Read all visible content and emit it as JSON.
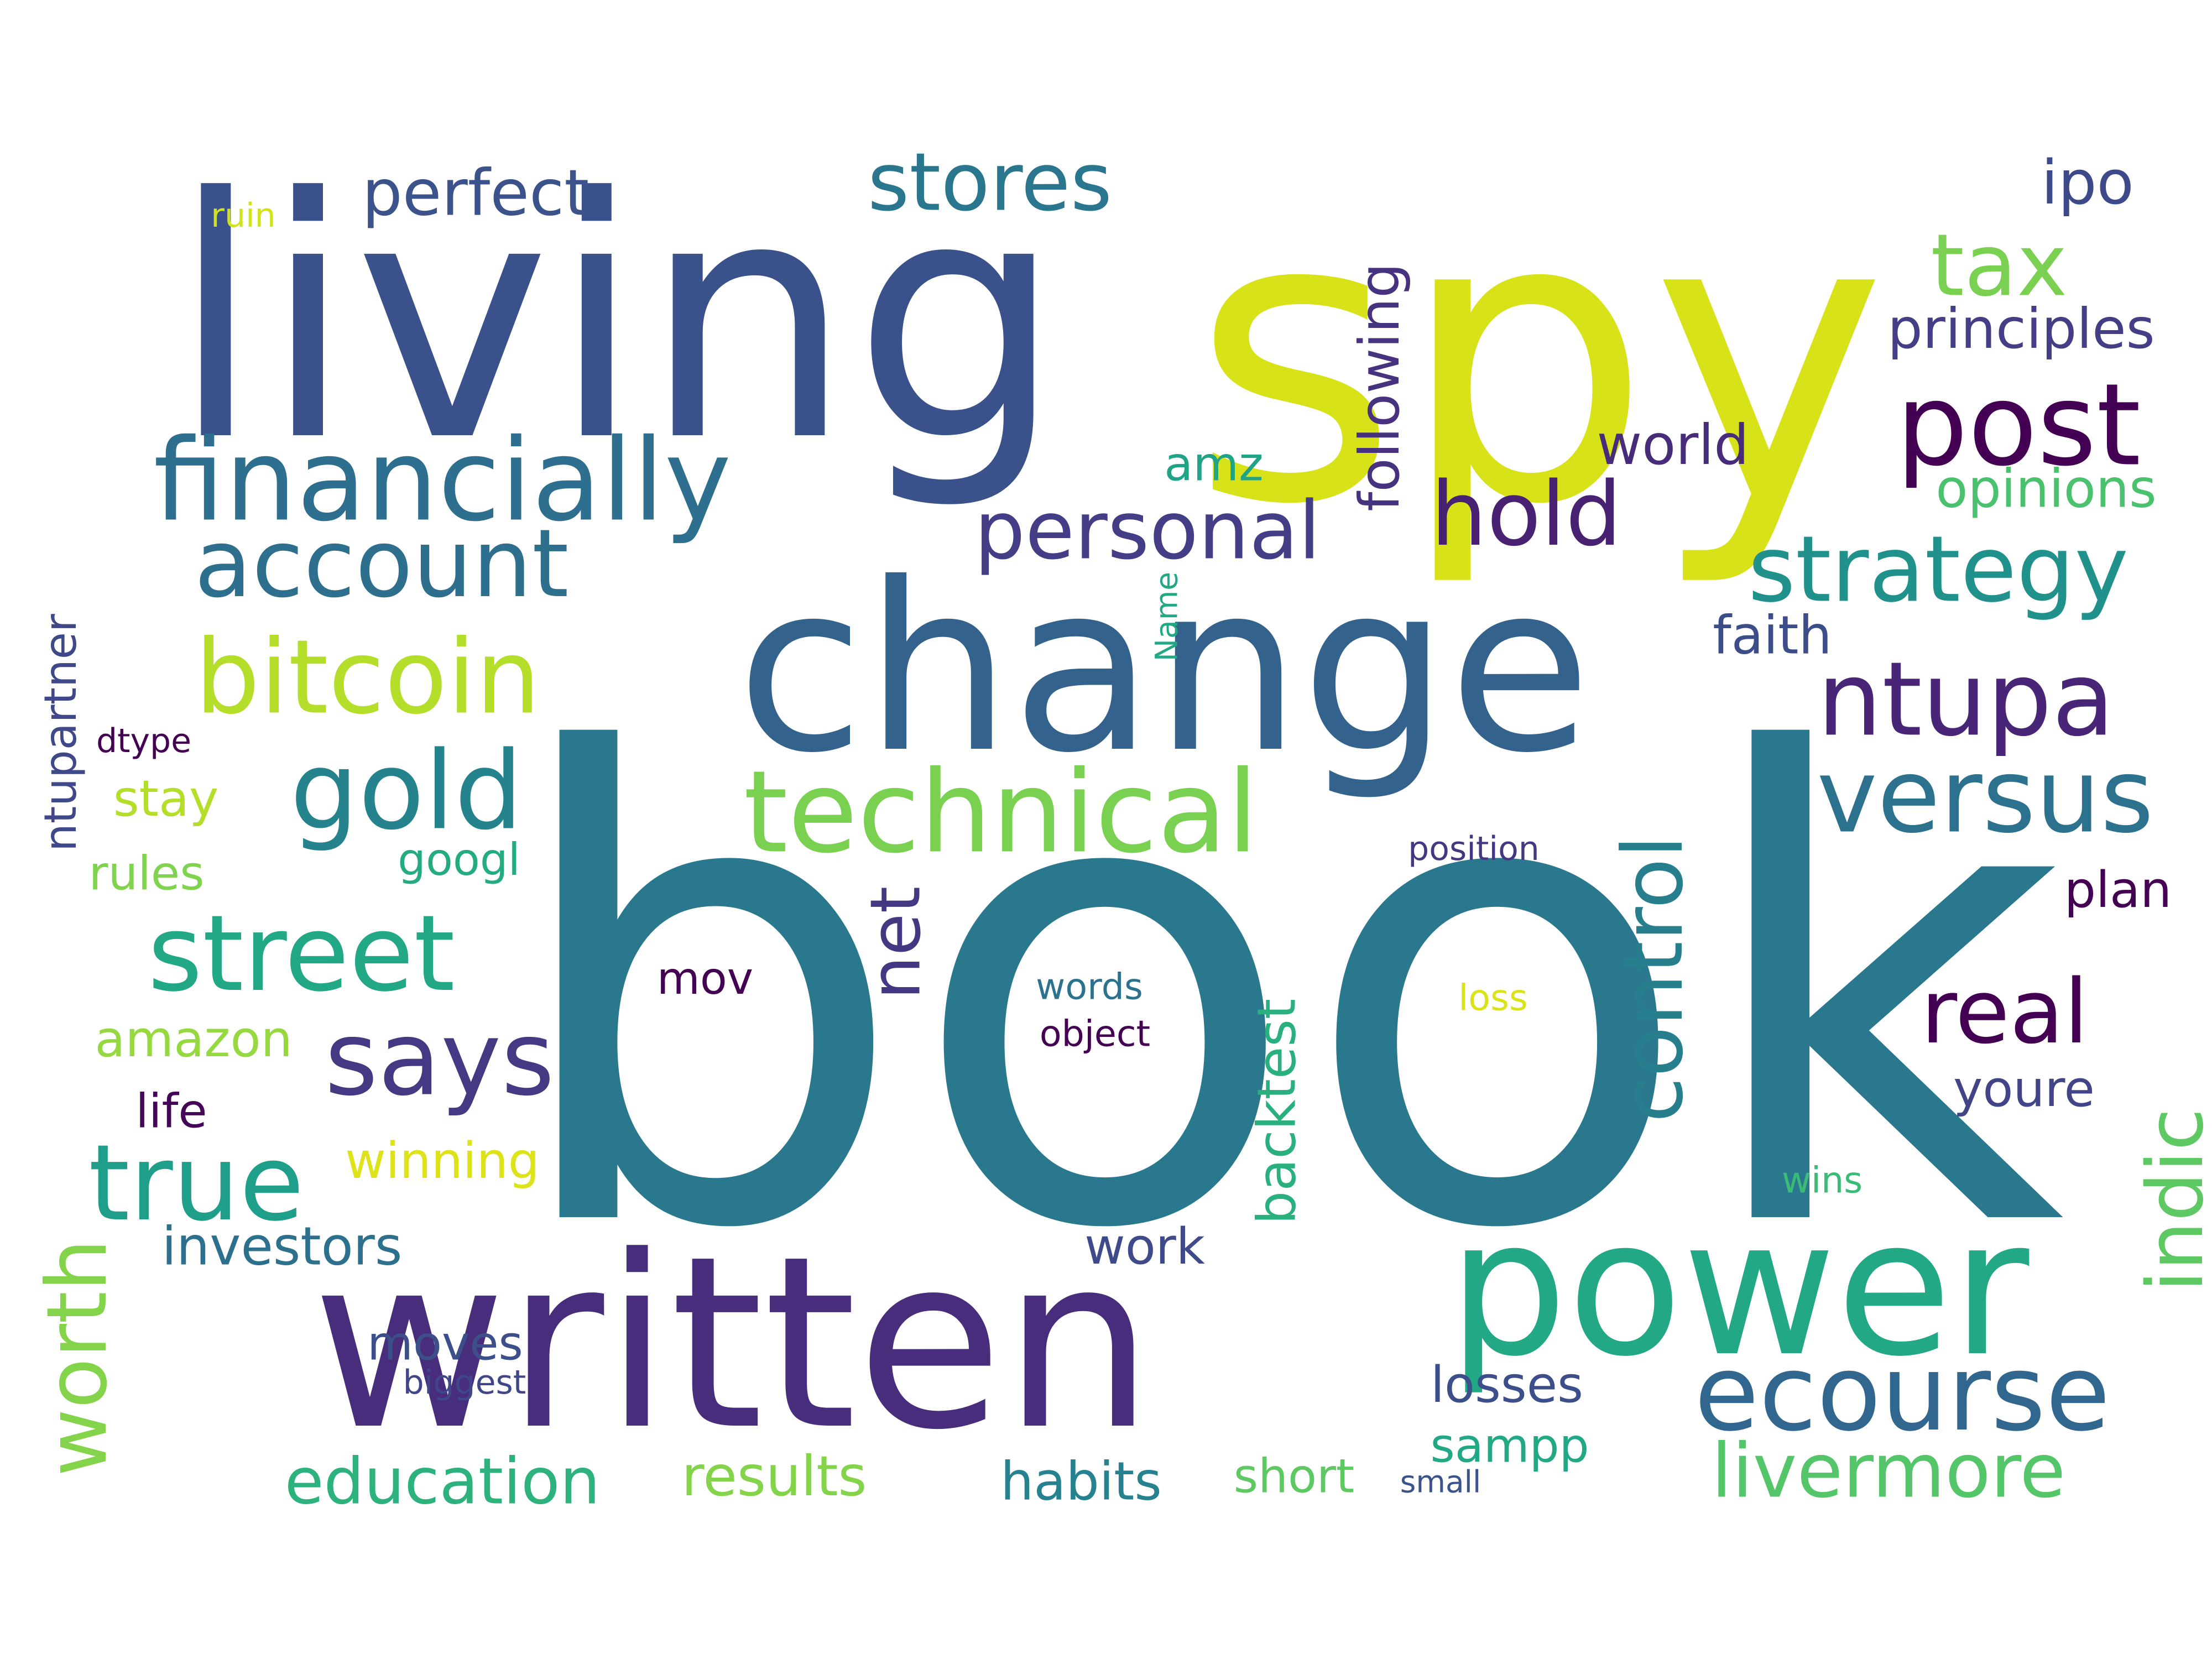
{
  "words": [
    {
      "text": "book",
      "color": "#2a788e"
    },
    {
      "text": "spy",
      "color": "#d8e219"
    },
    {
      "text": "living",
      "color": "#3b518b"
    },
    {
      "text": "change",
      "color": "#33638d"
    },
    {
      "text": "written",
      "color": "#472d7b"
    },
    {
      "text": "power",
      "color": "#22a884"
    },
    {
      "text": "financially",
      "color": "#2e6e8e"
    },
    {
      "text": "post",
      "color": "#440154"
    },
    {
      "text": "technical",
      "color": "#7ad151"
    },
    {
      "text": "ecourse",
      "color": "#31668e"
    },
    {
      "text": "bitcoin",
      "color": "#b5de2b"
    },
    {
      "text": "street",
      "color": "#22a884"
    },
    {
      "text": "versus",
      "color": "#2c728e"
    },
    {
      "text": "gold",
      "color": "#25838e"
    },
    {
      "text": "ntupa",
      "color": "#482576"
    },
    {
      "text": "true",
      "color": "#1f9e89"
    },
    {
      "text": "says",
      "color": "#443983"
    },
    {
      "text": "account",
      "color": "#2e6f8e"
    },
    {
      "text": "strategy",
      "color": "#21918c"
    },
    {
      "text": "personal",
      "color": "#433e85"
    },
    {
      "text": "real",
      "color": "#440154"
    },
    {
      "text": "stores",
      "color": "#2a768e"
    },
    {
      "text": "livermore",
      "color": "#54c568"
    },
    {
      "text": "hold",
      "color": "#482173"
    },
    {
      "text": "control",
      "color": "#277f8e"
    },
    {
      "text": "tax",
      "color": "#7ad151"
    },
    {
      "text": "indic",
      "color": "#5ec962"
    },
    {
      "text": "worth",
      "color": "#84d44b"
    },
    {
      "text": "perfect",
      "color": "#3b528b"
    },
    {
      "text": "net",
      "color": "#453781"
    },
    {
      "text": "following",
      "color": "#46327e"
    },
    {
      "text": "ipo",
      "color": "#3e4989"
    },
    {
      "text": "principles",
      "color": "#433e85"
    },
    {
      "text": "world",
      "color": "#472c7a"
    },
    {
      "text": "opinions",
      "color": "#4ac16d"
    },
    {
      "text": "amz",
      "color": "#20a386"
    },
    {
      "text": "faith",
      "color": "#3d4d8a"
    },
    {
      "text": "backtest",
      "color": "#2ab07f"
    },
    {
      "text": "youre",
      "color": "#414487"
    },
    {
      "text": "plan",
      "color": "#440154"
    },
    {
      "text": "ntupartner",
      "color": "#3f4889"
    },
    {
      "text": "education",
      "color": "#2db27d"
    },
    {
      "text": "investors",
      "color": "#2d708e"
    },
    {
      "text": "results",
      "color": "#84d44b"
    },
    {
      "text": "amazon",
      "color": "#95d840"
    },
    {
      "text": "winning",
      "color": "#dde318"
    },
    {
      "text": "habits",
      "color": "#26828e"
    },
    {
      "text": "short",
      "color": "#5ec962"
    },
    {
      "text": "work",
      "color": "#3e4a89"
    },
    {
      "text": "losses",
      "color": "#3c4f8a"
    },
    {
      "text": "sampp",
      "color": "#22a884"
    },
    {
      "text": "moves",
      "color": "#3c4f8a"
    },
    {
      "text": "googl",
      "color": "#25ab82"
    },
    {
      "text": "stay",
      "color": "#b5de2b"
    },
    {
      "text": "rules",
      "color": "#7fd34e"
    },
    {
      "text": "life",
      "color": "#450559"
    },
    {
      "text": "mov",
      "color": "#440154"
    },
    {
      "text": "position",
      "color": "#453882"
    },
    {
      "text": "words",
      "color": "#2c728e"
    },
    {
      "text": "object",
      "color": "#440154"
    },
    {
      "text": "loss",
      "color": "#dae319"
    },
    {
      "text": "wins",
      "color": "#3bbb75"
    },
    {
      "text": "small",
      "color": "#3b528b"
    },
    {
      "text": "biggest",
      "color": "#404688"
    },
    {
      "text": "dtype",
      "color": "#440154"
    },
    {
      "text": "ruin",
      "color": "#d2e21b"
    },
    {
      "text": "Name",
      "color": "#22a884"
    }
  ]
}
